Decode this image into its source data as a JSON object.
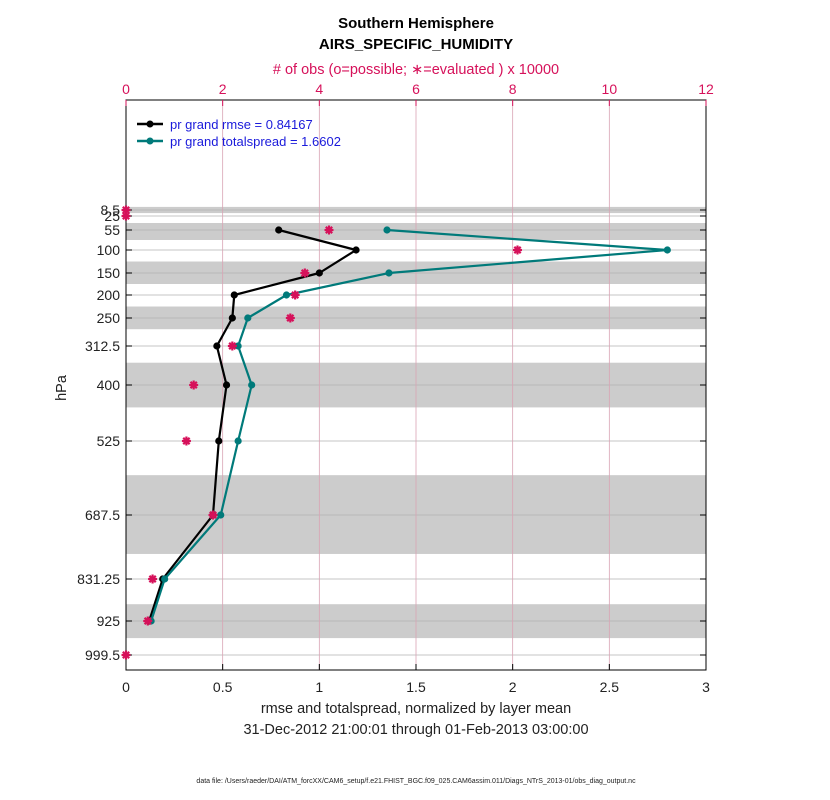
{
  "chart_data": {
    "type": "line",
    "title": "Southern Hemisphere",
    "subtitle": "AIRS_SPECIFIC_HUMIDITY",
    "top_axis_label": "# of obs (o=possible; ∗=evaluated ) x 10000",
    "xlabel": "rmse and totalspread, normalized by layer mean",
    "date_range": "31-Dec-2012 21:00:01 through 01-Feb-2013 03:00:00",
    "ylabel": "hPa",
    "footer": "data file: /Users/raeder/DAI/ATM_forcXX/CAM6_setup/f.e21.FHIST_BGC.f09_025.CAM6assim.011/Diags_NTrS_2013-01/obs_diag_output.nc",
    "xlim": [
      0,
      3
    ],
    "top_xlim": [
      0,
      12
    ],
    "x_ticks": [
      "0",
      "0.5",
      "1",
      "1.5",
      "2",
      "2.5",
      "3"
    ],
    "top_ticks": [
      "0",
      "2",
      "4",
      "6",
      "8",
      "10",
      "12"
    ],
    "levels": [
      "8.5",
      "25",
      "55",
      "100",
      "150",
      "200",
      "250",
      "312.5",
      "400",
      "525",
      "687.5",
      "831.25",
      "925",
      "999.5"
    ],
    "level_values": [
      8.5,
      25,
      55,
      100,
      150,
      200,
      250,
      312.5,
      400,
      525,
      687.5,
      831.25,
      925,
      999.5
    ],
    "layer_edges": [
      0,
      17,
      40,
      77.5,
      125,
      175,
      225,
      275,
      350,
      450,
      600,
      775,
      887.5,
      962.5,
      1037
    ],
    "series": [
      {
        "name": "pr grand rmse",
        "legend": "pr grand rmse = 0.84167",
        "color": "#000000",
        "levels": [
          55,
          100,
          150,
          200,
          250,
          312.5,
          400,
          525,
          687.5,
          831.25,
          925
        ],
        "values": [
          0.79,
          1.19,
          1.0,
          0.56,
          0.55,
          0.47,
          0.52,
          0.48,
          0.45,
          0.19,
          0.12
        ]
      },
      {
        "name": "pr grand totalspread",
        "legend": "pr grand totalspread = 1.6602",
        "color": "#007a7a",
        "levels": [
          55,
          100,
          150,
          200,
          250,
          312.5,
          400,
          525,
          687.5,
          831.25,
          925
        ],
        "values": [
          1.35,
          2.8,
          1.36,
          0.83,
          0.63,
          0.58,
          0.65,
          0.58,
          0.49,
          0.2,
          0.13
        ]
      }
    ],
    "obs_evaluated": {
      "name": "# of obs evaluated (x 10000)",
      "color": "#d6115a",
      "levels": [
        8.5,
        25,
        55,
        100,
        150,
        200,
        250,
        312.5,
        400,
        525,
        687.5,
        831.25,
        925,
        999.5
      ],
      "values": [
        0.0,
        0.0,
        4.2,
        8.1,
        3.7,
        3.5,
        3.4,
        2.2,
        1.4,
        1.25,
        1.8,
        0.55,
        0.45,
        0.0
      ]
    }
  }
}
